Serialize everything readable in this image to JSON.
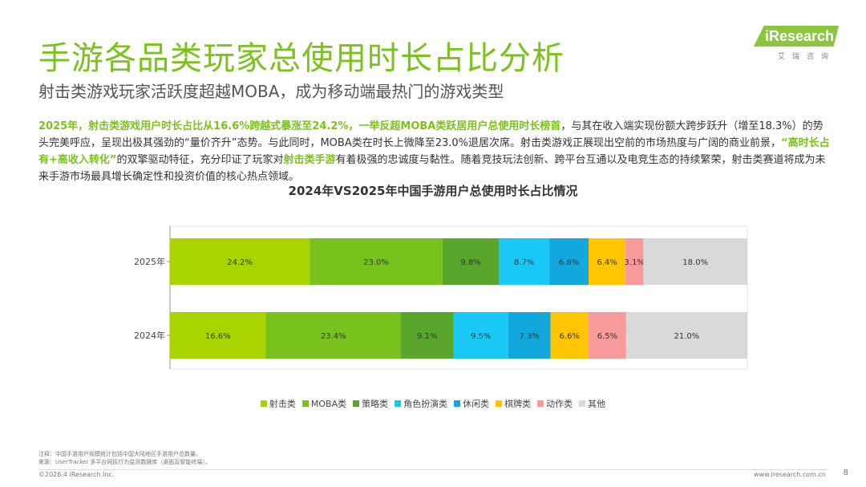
{
  "header": {
    "title": "手游各品类玩家总使用时长占比分析",
    "subtitle": "射击类游戏玩家活跃度超越MOBA，成为移动端最热门的游戏类型"
  },
  "logo": {
    "word": "iResearch",
    "sub": "艾瑞咨询"
  },
  "body": {
    "p1_hl": "2025年，射击类游戏用户时长占比从16.6%跨越式暴涨至24.2%，一举反超MOBA类跃居用户总使用时长榜首",
    "p2": "，与其在收入端实现份额大跨步跃升（增至18.3%）的势头完美呼应，呈现出极其强劲的“量价齐升”态势。与此同时，MOBA类在时长上微降至23.0%退居次席。射击类游戏正展现出空前的市场热度与广阔的商业前景，",
    "p3_hl": "“高时长占有+高收入转化”",
    "p4": "的双擎驱动特征，充分印证了玩家对",
    "p5_hl": "射击类手游",
    "p6": "有着极强的忠诚度与黏性。随着竞技玩法创新、跨平台互通以及电竞生态的持续繁荣，射击类赛道将成为未来手游市场最具增长确定性和投资价值的核心热点领域。"
  },
  "chart_data": {
    "type": "bar",
    "orientation": "horizontal",
    "stacked": true,
    "title": "2024年VS2025年中国手游用户总使用时长占比情况",
    "categories": [
      "2025年",
      "2024年"
    ],
    "xlim": [
      0,
      100
    ],
    "legend_position": "bottom",
    "series": [
      {
        "name": "射击类",
        "color": "#a9d400",
        "values": [
          24.2,
          16.6
        ]
      },
      {
        "name": "MOBA类",
        "color": "#79c21e",
        "values": [
          23.0,
          23.4
        ]
      },
      {
        "name": "策略类",
        "color": "#5aa52b",
        "values": [
          9.8,
          9.1
        ]
      },
      {
        "name": "角色扮演类",
        "color": "#19c8f5",
        "values": [
          8.7,
          9.5
        ]
      },
      {
        "name": "休闲类",
        "color": "#12a8dd",
        "values": [
          6.8,
          7.3
        ]
      },
      {
        "name": "棋牌类",
        "color": "#ffc600",
        "values": [
          6.4,
          6.6
        ]
      },
      {
        "name": "动作类",
        "color": "#f79a9c",
        "values": [
          3.1,
          6.5
        ]
      },
      {
        "name": "其他",
        "color": "#d9d9d9",
        "values": [
          18.0,
          21.0
        ]
      }
    ]
  },
  "notes": {
    "line1": "注释：中国手游用户规模统计包括中国大陆地区手游用户总数量。",
    "line2": "来源：UserTracker 多平台网民行为监测数据库（桌面及智能终端）。"
  },
  "footer": {
    "copyright": "©2026.4 iResearch Inc.",
    "website": "www.iresearch.com.cn",
    "page": "8"
  }
}
